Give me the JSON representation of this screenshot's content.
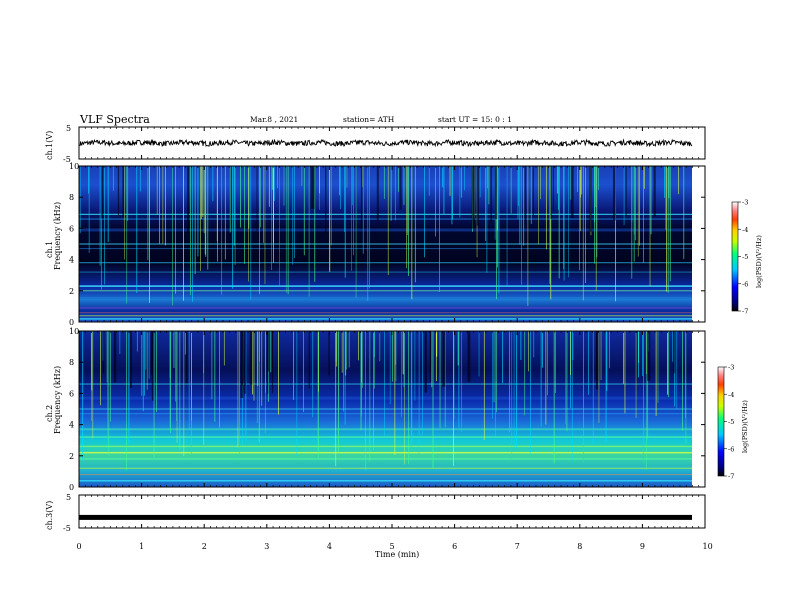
{
  "header": {
    "title": "VLF Spectra",
    "date": "Mar.8  , 2021",
    "station": "station= ATH",
    "start": "start  UT =   15: 0  : 1"
  },
  "colors": {
    "spec_low": "#000033",
    "spec_mid": "#0000ff",
    "spec_high": "#00ffff",
    "spec_peak": "#ffff00"
  },
  "chart_data": [
    {
      "type": "line",
      "panel": "ch1-waveform",
      "ylabel": "ch.1(V)",
      "y_ticks": [
        "5",
        "-5"
      ],
      "ylim": [
        -5,
        5
      ],
      "x_range_min": [
        0,
        9.8
      ],
      "description_values": "noisy voltage trace centered near 0 V"
    },
    {
      "type": "heatmap",
      "panel": "ch1-spectrogram",
      "ylabel_channel": "ch.1",
      "ylabel": "Frequency (kHz)",
      "y_ticks": [
        "0",
        "2",
        "4",
        "6",
        "8",
        "10"
      ],
      "ylim_khz": [
        0,
        10
      ],
      "colorbar": {
        "label": "log(PSD)(V²/Hz)",
        "ticks": [
          "-3",
          "-4",
          "-5",
          "-6",
          "-7"
        ],
        "range": [
          -7,
          -3
        ]
      }
    },
    {
      "type": "heatmap",
      "panel": "ch2-spectrogram",
      "ylabel_channel": "ch.2",
      "ylabel": "Frequency (kHz)",
      "y_ticks": [
        "0",
        "2",
        "4",
        "6",
        "8",
        "10"
      ],
      "ylim_khz": [
        0,
        10
      ],
      "colorbar": {
        "label": "log(PSD)(V²/Hz)",
        "ticks": [
          "-3",
          "-4",
          "-5",
          "-6",
          "-7"
        ],
        "range": [
          -7,
          -3
        ]
      }
    },
    {
      "type": "line",
      "panel": "ch3-waveform",
      "ylabel": "ch.3(V)",
      "y_ticks": [
        "5",
        "-5"
      ],
      "ylim": [
        -5,
        5
      ],
      "value_level": -1.8
    }
  ],
  "x_axis": {
    "label": "Time  (min)",
    "ticks": [
      "0",
      "1",
      "2",
      "3",
      "4",
      "5",
      "6",
      "7",
      "8",
      "9",
      "10"
    ],
    "xlim": [
      0,
      10
    ]
  }
}
